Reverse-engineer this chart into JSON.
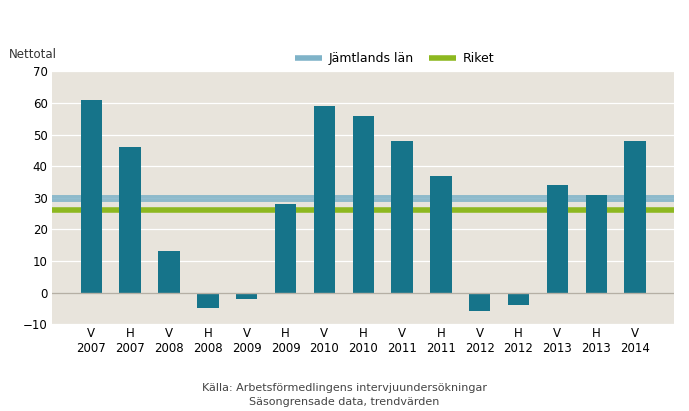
{
  "categories": [
    "V\n2007",
    "H\n2007",
    "V\n2008",
    "H\n2008",
    "V\n2009",
    "H\n2009",
    "V\n2010",
    "H\n2010",
    "V\n2011",
    "H\n2011",
    "V\n2012",
    "H\n2012",
    "V\n2013",
    "H\n2013",
    "V\n2014"
  ],
  "values": [
    61,
    46,
    13,
    -5,
    -2,
    28,
    59,
    56,
    48,
    37,
    -6,
    -4,
    34,
    31,
    48
  ],
  "bar_color": "#16748a",
  "jämtlands_value": 30,
  "riket_value": 26,
  "jämtlands_color": "#7fb3c8",
  "riket_color": "#8db820",
  "ylabel": "Nettotal",
  "ylim": [
    -10,
    70
  ],
  "yticks": [
    -10,
    0,
    10,
    20,
    30,
    40,
    50,
    60,
    70
  ],
  "legend_jamtland": "Jämtlands län",
  "legend_riket": "Riket",
  "caption_line1": "Källa: Arbetsförmedlingens intervjuundersökningar",
  "caption_line2": "Säsongrensade data, trendvärden",
  "plot_bg_color": "#e8e4dc",
  "figure_bg_color": "#ffffff",
  "grid_color": "#ffffff",
  "axis_fontsize": 8.5,
  "legend_fontsize": 9,
  "caption_fontsize": 8
}
